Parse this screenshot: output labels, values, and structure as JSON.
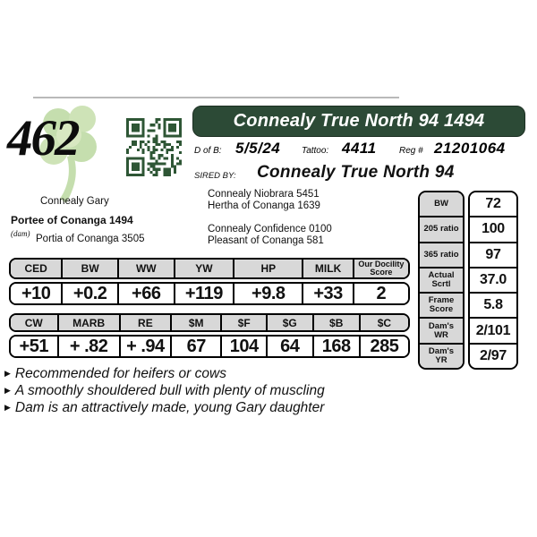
{
  "colors": {
    "accent_green": "#2c4a36",
    "qr_green": "#2e5635",
    "clover_green": "#b7d79b",
    "clover_green_light": "#cfe3b2",
    "cell_gray": "#d8d8d8"
  },
  "lot_number": "462",
  "banner_title": "Connealy True North 94 1494",
  "info": {
    "dob_label": "D of B:",
    "dob": "5/5/24",
    "tattoo_label": "Tattoo:",
    "tattoo": "4411",
    "reg_label": "Reg #",
    "reg": "21201064"
  },
  "sired": {
    "label": "SIRED BY:",
    "name": "Connealy True North 94"
  },
  "pedigree": {
    "dam_sire": "Connealy Gary",
    "dam_name": "Portee of Conanga 1494",
    "dam_tag": "(dam)",
    "dam_dam": "Portia of Conanga 3505",
    "right_top": [
      "Connealy Niobrara 5451",
      "Hertha of Conanga 1639"
    ],
    "right_bottom": [
      "Connealy Confidence 0100",
      "Pleasant of Conanga 581"
    ]
  },
  "epd_primary": {
    "headers": [
      "CED",
      "BW",
      "WW",
      "YW",
      "HP",
      "MILK",
      "Our Docility Score"
    ],
    "values": [
      "+10",
      "+0.2",
      "+66",
      "+119",
      "+9.8",
      "+33",
      "2"
    ]
  },
  "epd_dollar": {
    "headers": [
      "CW",
      "MARB",
      "RE",
      "$M",
      "$F",
      "$G",
      "$B",
      "$C"
    ],
    "values": [
      "+51",
      "+ .82",
      "+ .94",
      "67",
      "104",
      "64",
      "168",
      "285"
    ]
  },
  "stats": [
    {
      "label": "BW",
      "value": "72"
    },
    {
      "label": "205 ratio",
      "value": "100"
    },
    {
      "label": "365 ratio",
      "value": "97"
    },
    {
      "label": "Actual Scrtl",
      "value": "37.0"
    },
    {
      "label": "Frame Score",
      "value": "5.8"
    },
    {
      "label": "Dam's WR",
      "value": "2/101"
    },
    {
      "label": "Dam's YR",
      "value": "2/97"
    }
  ],
  "notes": [
    "Recommended for heifers or cows",
    "A smoothly shouldered bull with plenty of muscling",
    "Dam is an attractively made, young Gary daughter"
  ]
}
